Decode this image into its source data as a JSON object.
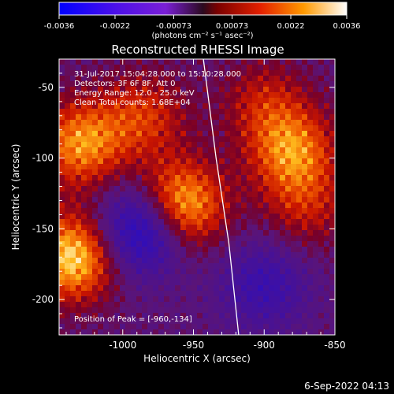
{
  "colorbar": {
    "tick_labels": [
      "-0.0036",
      "-0.0022",
      "-0.00073",
      "0.00073",
      "0.0022",
      "0.0036"
    ],
    "unit_label": "(photons cm⁻² s⁻¹ asec⁻²)",
    "range": [
      -0.0036,
      0.0036
    ]
  },
  "chart_data": {
    "type": "heatmap",
    "title": "Reconstructed RHESSI Image",
    "xlabel": "Heliocentric X (arcsec)",
    "ylabel": "Heliocentric Y (arcsec)",
    "xlim": [
      -1045,
      -850
    ],
    "ylim": [
      -225,
      -30
    ],
    "x_ticks": [
      -1000,
      -950,
      -900,
      -850
    ],
    "y_ticks": [
      -50,
      -100,
      -150,
      -200
    ],
    "limb_curve": {
      "points": [
        [
          -943,
          -30
        ],
        [
          -934,
          -100
        ],
        [
          -925,
          -160
        ],
        [
          -918,
          -225
        ]
      ]
    },
    "bright_regions": [
      {
        "center": [
          -960,
          -134
        ],
        "level": 0.95
      },
      {
        "center": [
          -1035,
          -170
        ],
        "level": 0.9
      },
      {
        "center": [
          -1030,
          -90
        ],
        "level": 0.7
      },
      {
        "center": [
          -880,
          -95
        ],
        "level": 0.65
      },
      {
        "center": [
          -985,
          -70
        ],
        "level": 0.45
      },
      {
        "center": [
          -900,
          -60
        ],
        "level": 0.35
      },
      {
        "center": [
          -870,
          -135
        ],
        "level": 0.35
      }
    ],
    "dim_regions": [
      {
        "center": [
          -985,
          -150
        ],
        "level": -0.9
      },
      {
        "center": [
          -900,
          -190
        ],
        "level": -0.45
      }
    ],
    "annotations": [
      "31-Jul-2017 15:04:28.000 to 15:10:28.000",
      "Detectors: 3F 6F 8F, Att 0",
      "Energy Range: 12.0 - 25.0 keV",
      "Clean     Total counts: 1.68E+04"
    ],
    "peak_label": "Position of Peak = [-960,-134]",
    "peak": [
      -960,
      -134
    ]
  },
  "footer": {
    "timestamp": "6-Sep-2022 04:13"
  }
}
